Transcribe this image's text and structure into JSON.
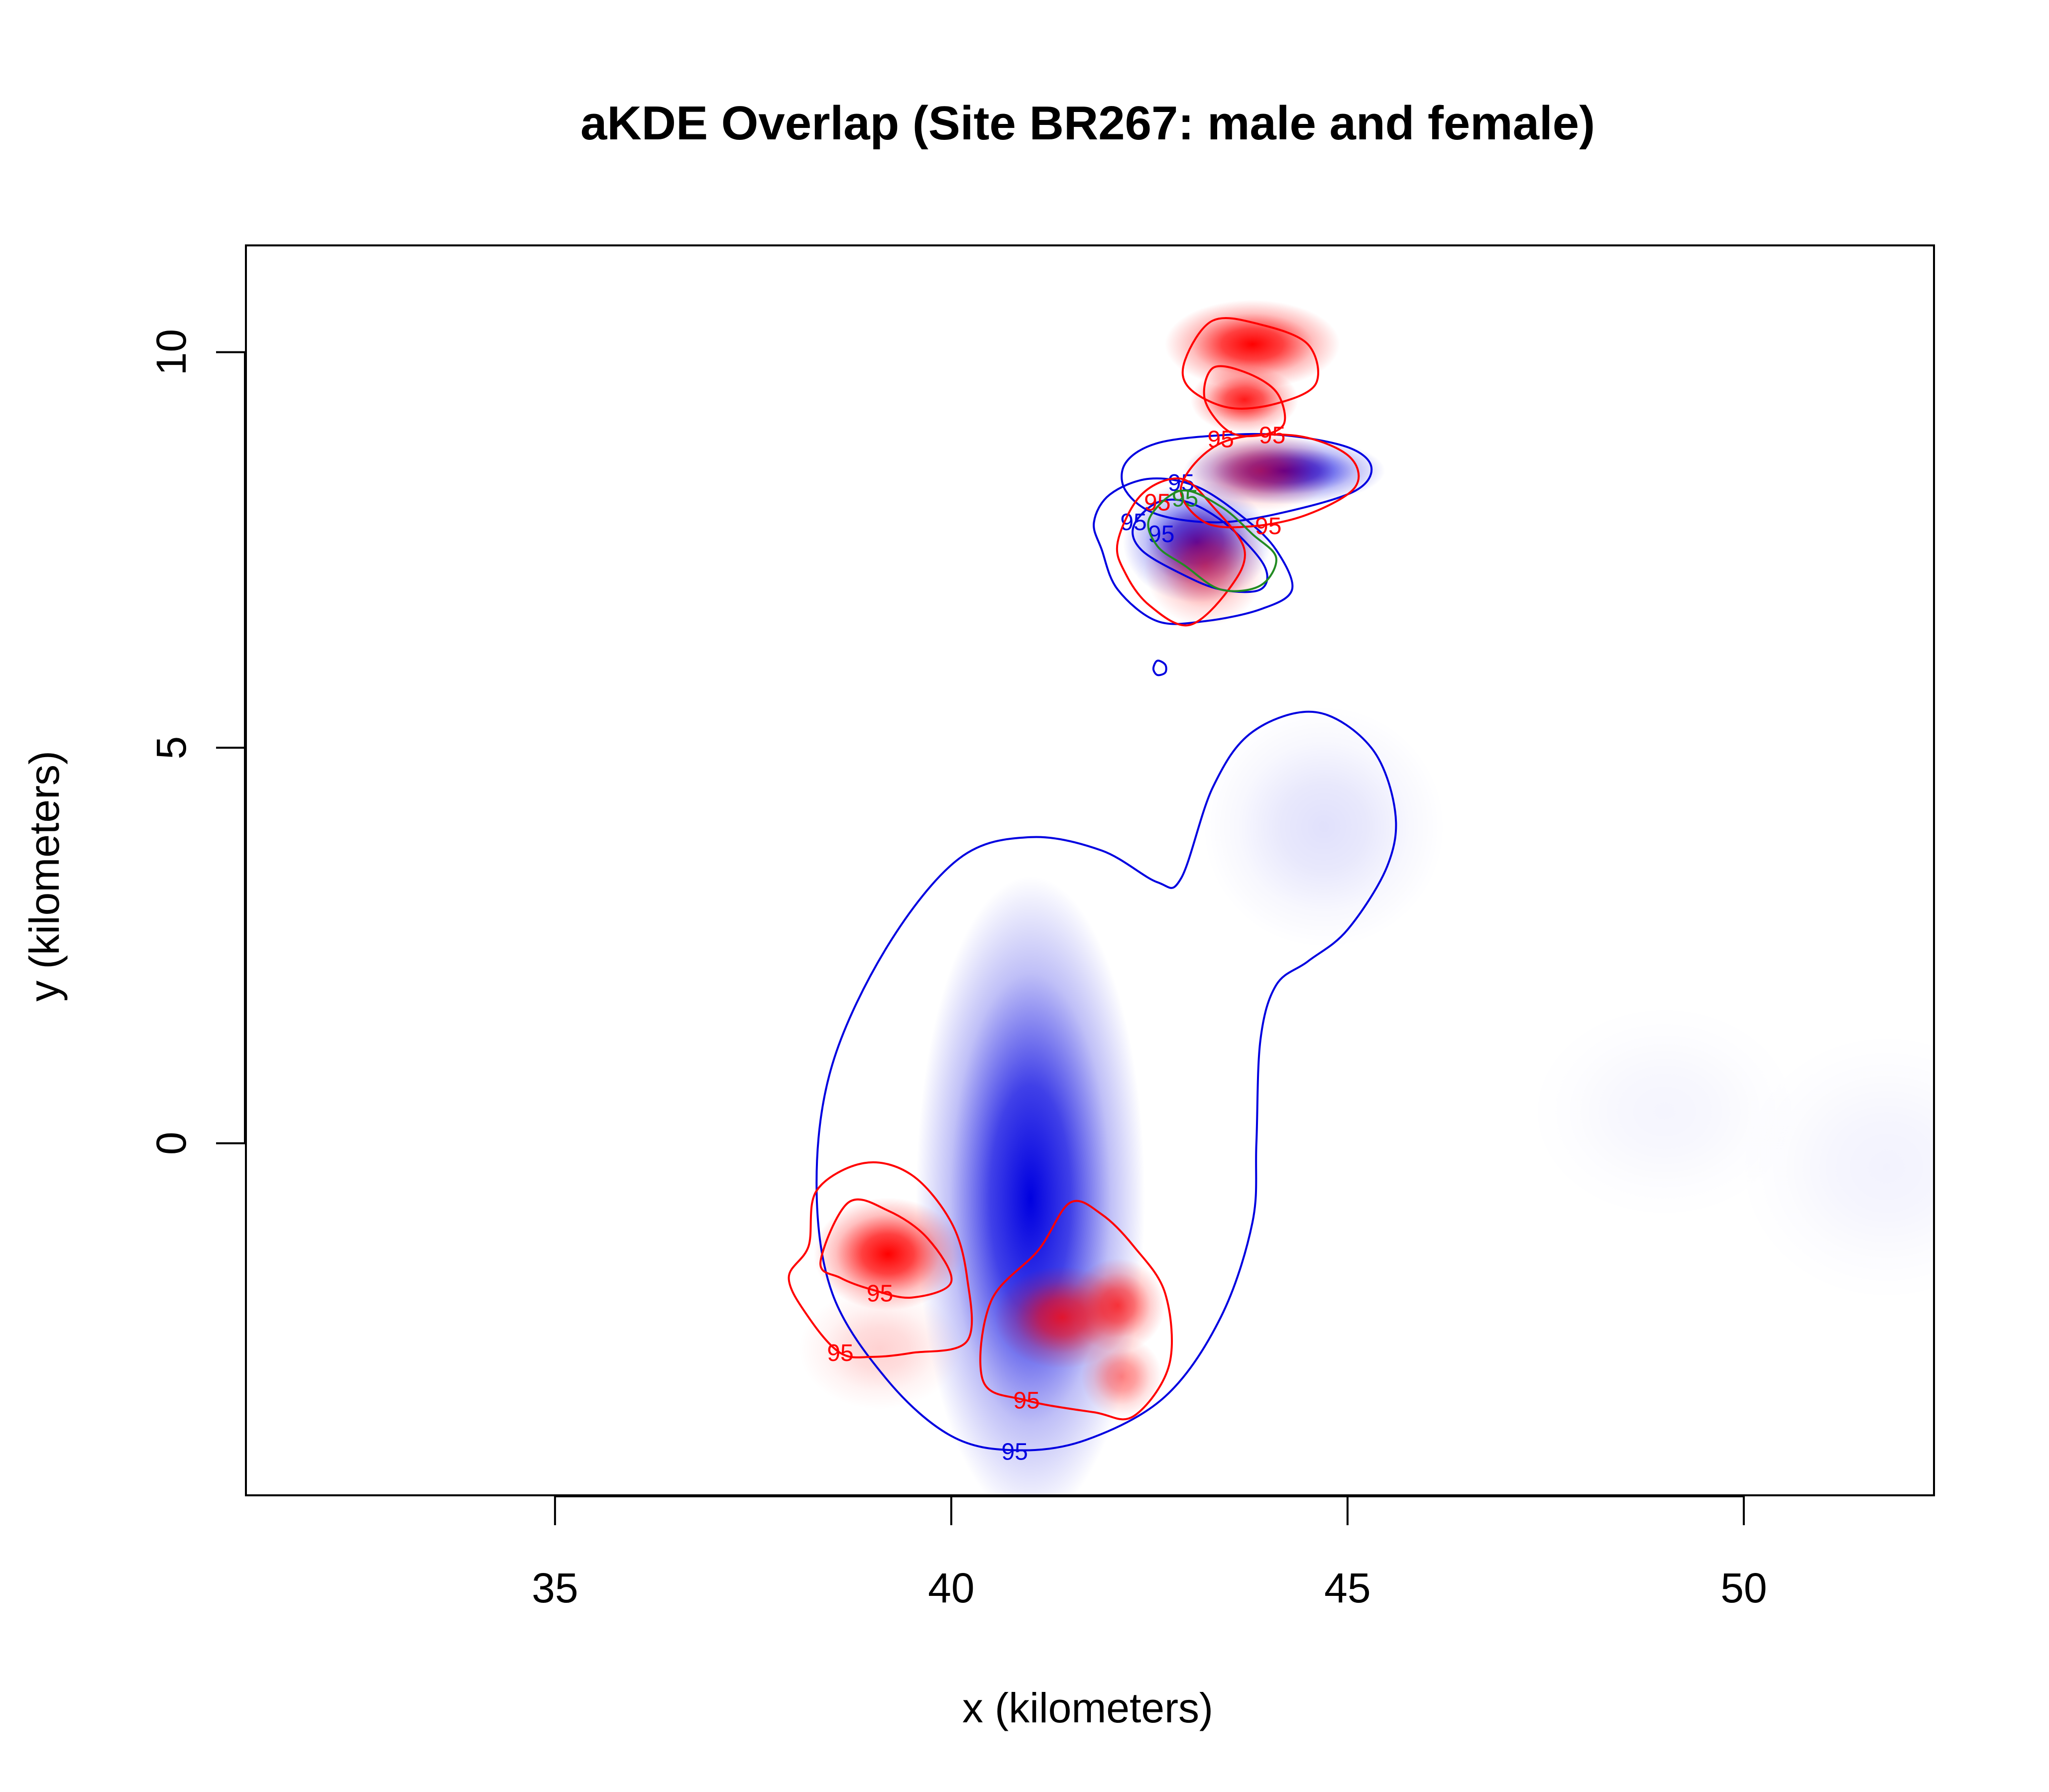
{
  "chart_data": {
    "type": "heatmap",
    "title": "aKDE Overlap (Site BR267: male and female)",
    "xlabel": "x (kilometers)",
    "ylabel": "y (kilometers)",
    "xlim": [
      31.1,
      52.4
    ],
    "ylim": [
      -4.45,
      11.35
    ],
    "xticks": [
      "35",
      "40",
      "45",
      "50"
    ],
    "yticks": [
      "0",
      "5",
      "10"
    ],
    "grid": false,
    "legend": "none",
    "colors": {
      "male": "#0000e0",
      "female": "#ff0000",
      "overlap": "#228b22",
      "frame": "#000000"
    },
    "density_blobs": [
      {
        "group": "male",
        "x": 41.0,
        "y": -0.7,
        "sx": 0.85,
        "sy": 2.4,
        "strength": 1.0
      },
      {
        "group": "male",
        "x": 44.7,
        "y": 4.0,
        "sx": 0.9,
        "sy": 0.9,
        "strength": 0.12
      },
      {
        "group": "male",
        "x": 49.0,
        "y": 0.4,
        "sx": 1.0,
        "sy": 0.8,
        "strength": 0.04
      },
      {
        "group": "male",
        "x": 51.8,
        "y": -0.3,
        "sx": 1.1,
        "sy": 1.0,
        "strength": 0.05
      },
      {
        "group": "male",
        "x": 44.2,
        "y": 8.5,
        "sx": 0.75,
        "sy": 0.25,
        "strength": 1.0
      },
      {
        "group": "male",
        "x": 43.1,
        "y": 7.6,
        "sx": 0.55,
        "sy": 0.45,
        "strength": 0.95
      },
      {
        "group": "female",
        "x": 39.2,
        "y": -1.4,
        "sx": 0.55,
        "sy": 0.42,
        "strength": 1.0
      },
      {
        "group": "female",
        "x": 39.1,
        "y": -2.6,
        "sx": 0.6,
        "sy": 0.45,
        "strength": 0.18
      },
      {
        "group": "female",
        "x": 41.4,
        "y": -2.2,
        "sx": 0.5,
        "sy": 0.38,
        "strength": 0.8
      },
      {
        "group": "female",
        "x": 42.1,
        "y": -2.05,
        "sx": 0.35,
        "sy": 0.35,
        "strength": 0.75
      },
      {
        "group": "female",
        "x": 42.15,
        "y": -2.95,
        "sx": 0.3,
        "sy": 0.3,
        "strength": 0.5
      },
      {
        "group": "female",
        "x": 43.8,
        "y": 10.1,
        "sx": 0.65,
        "sy": 0.33,
        "strength": 1.0
      },
      {
        "group": "female",
        "x": 43.7,
        "y": 9.4,
        "sx": 0.4,
        "sy": 0.25,
        "strength": 0.9
      },
      {
        "group": "female",
        "x": 43.2,
        "y": 7.3,
        "sx": 0.45,
        "sy": 0.45,
        "strength": 0.55
      },
      {
        "group": "female",
        "x": 43.9,
        "y": 8.5,
        "sx": 0.55,
        "sy": 0.3,
        "strength": 0.55
      }
    ],
    "contours": [
      {
        "group": "male",
        "level": "95",
        "label_at": [
          40.8,
          -3.9
        ],
        "points": [
          [
            40.8,
            -3.88
          ],
          [
            40.0,
            -3.7
          ],
          [
            39.2,
            -3.0
          ],
          [
            38.5,
            -1.9
          ],
          [
            38.3,
            -0.5
          ],
          [
            38.5,
            1.0
          ],
          [
            39.2,
            2.5
          ],
          [
            40.1,
            3.6
          ],
          [
            41.0,
            3.87
          ],
          [
            41.9,
            3.7
          ],
          [
            42.6,
            3.3
          ],
          [
            42.9,
            3.35
          ],
          [
            43.3,
            4.5
          ],
          [
            43.8,
            5.2
          ],
          [
            44.6,
            5.45
          ],
          [
            45.3,
            5.0
          ],
          [
            45.6,
            4.2
          ],
          [
            45.5,
            3.5
          ],
          [
            45.0,
            2.7
          ],
          [
            44.5,
            2.3
          ],
          [
            44.1,
            2.0
          ],
          [
            43.9,
            1.3
          ],
          [
            43.85,
            0.0
          ],
          [
            43.8,
            -1.0
          ],
          [
            43.4,
            -2.2
          ],
          [
            42.7,
            -3.2
          ],
          [
            41.7,
            -3.75
          ]
        ]
      },
      {
        "group": "male",
        "level": "95",
        "label_at": [
          42.9,
          8.35
        ],
        "points": [
          [
            42.2,
            8.6
          ],
          [
            42.6,
            8.85
          ],
          [
            43.4,
            8.95
          ],
          [
            44.2,
            8.95
          ],
          [
            45.0,
            8.8
          ],
          [
            45.3,
            8.55
          ],
          [
            45.1,
            8.25
          ],
          [
            44.3,
            8.0
          ],
          [
            43.4,
            7.85
          ],
          [
            42.6,
            7.95
          ],
          [
            42.2,
            8.25
          ]
        ]
      },
      {
        "group": "male",
        "level": "95",
        "label_at": [
          42.3,
          7.85
        ],
        "points": [
          [
            41.8,
            7.85
          ],
          [
            42.0,
            8.2
          ],
          [
            42.5,
            8.4
          ],
          [
            43.1,
            8.3
          ],
          [
            43.7,
            7.9
          ],
          [
            44.1,
            7.5
          ],
          [
            44.3,
            7.0
          ],
          [
            43.9,
            6.75
          ],
          [
            43.2,
            6.6
          ],
          [
            42.6,
            6.6
          ],
          [
            42.1,
            7.0
          ],
          [
            41.9,
            7.5
          ]
        ]
      },
      {
        "group": "male",
        "level": "95",
        "label_at": [
          42.65,
          7.7
        ],
        "points": [
          [
            42.3,
            7.8
          ],
          [
            42.6,
            8.1
          ],
          [
            43.0,
            8.1
          ],
          [
            43.5,
            7.8
          ],
          [
            43.95,
            7.3
          ],
          [
            43.9,
            7.0
          ],
          [
            43.4,
            7.0
          ],
          [
            42.9,
            7.2
          ],
          [
            42.4,
            7.5
          ]
        ]
      },
      {
        "group": "male",
        "level": "",
        "label_at": [
          42.6,
          6.0
        ],
        "points": [
          [
            42.55,
            6.0
          ],
          [
            42.6,
            6.1
          ],
          [
            42.7,
            6.05
          ],
          [
            42.7,
            5.95
          ],
          [
            42.6,
            5.92
          ]
        ]
      },
      {
        "group": "female",
        "level": "95",
        "label_at": [
          38.6,
          -2.65
        ],
        "points": [
          [
            38.6,
            -2.65
          ],
          [
            38.2,
            -2.2
          ],
          [
            37.95,
            -1.7
          ],
          [
            38.2,
            -1.3
          ],
          [
            38.3,
            -0.6
          ],
          [
            38.9,
            -0.25
          ],
          [
            39.5,
            -0.4
          ],
          [
            40.0,
            -1.0
          ],
          [
            40.2,
            -1.7
          ],
          [
            40.2,
            -2.5
          ],
          [
            39.5,
            -2.65
          ],
          [
            39.0,
            -2.7
          ]
        ]
      },
      {
        "group": "female",
        "level": "95",
        "label_at": [
          39.1,
          -1.9
        ],
        "points": [
          [
            38.35,
            -1.5
          ],
          [
            38.7,
            -0.75
          ],
          [
            39.2,
            -0.85
          ],
          [
            39.7,
            -1.2
          ],
          [
            40.0,
            -1.75
          ],
          [
            39.5,
            -1.95
          ],
          [
            39.0,
            -1.85
          ],
          [
            38.6,
            -1.7
          ]
        ]
      },
      {
        "group": "female",
        "level": "95",
        "label_at": [
          40.95,
          -3.25
        ],
        "points": [
          [
            40.95,
            -3.25
          ],
          [
            40.4,
            -3.0
          ],
          [
            40.5,
            -2.0
          ],
          [
            41.1,
            -1.35
          ],
          [
            41.5,
            -0.75
          ],
          [
            41.9,
            -0.9
          ],
          [
            42.3,
            -1.3
          ],
          [
            42.7,
            -1.9
          ],
          [
            42.75,
            -2.8
          ],
          [
            42.3,
            -3.45
          ],
          [
            41.8,
            -3.4
          ]
        ]
      },
      {
        "group": "female",
        "level": "95",
        "label_at": [
          43.4,
          8.9
        ],
        "points": [
          [
            42.95,
            9.9
          ],
          [
            43.3,
            10.4
          ],
          [
            43.9,
            10.35
          ],
          [
            44.5,
            10.1
          ],
          [
            44.6,
            9.6
          ],
          [
            44.1,
            9.35
          ],
          [
            43.5,
            9.3
          ],
          [
            43.0,
            9.55
          ]
        ]
      },
      {
        "group": "female",
        "level": "95",
        "label_at": [
          44.05,
          8.95
        ],
        "points": [
          [
            43.2,
            9.4
          ],
          [
            43.3,
            9.8
          ],
          [
            43.7,
            9.75
          ],
          [
            44.1,
            9.5
          ],
          [
            44.2,
            9.1
          ],
          [
            43.9,
            8.95
          ],
          [
            43.5,
            9.0
          ]
        ]
      },
      {
        "group": "female",
        "level": "95",
        "label_at": [
          44.0,
          7.8
        ],
        "points": [
          [
            42.9,
            8.3
          ],
          [
            43.4,
            8.85
          ],
          [
            44.3,
            8.95
          ],
          [
            45.0,
            8.7
          ],
          [
            45.1,
            8.3
          ],
          [
            44.5,
            7.95
          ],
          [
            43.8,
            7.8
          ],
          [
            43.2,
            7.85
          ]
        ]
      },
      {
        "group": "female",
        "level": "95",
        "label_at": [
          42.6,
          8.1
        ],
        "points": [
          [
            42.1,
            7.6
          ],
          [
            42.4,
            8.2
          ],
          [
            42.9,
            8.4
          ],
          [
            43.3,
            8.05
          ],
          [
            43.7,
            7.5
          ],
          [
            43.5,
            7.0
          ],
          [
            43.0,
            6.55
          ],
          [
            42.5,
            6.8
          ],
          [
            42.2,
            7.2
          ]
        ]
      },
      {
        "group": "overlap",
        "level": "95",
        "label_at": [
          42.95,
          8.15
        ],
        "points": [
          [
            42.5,
            7.9
          ],
          [
            42.9,
            8.25
          ],
          [
            43.4,
            8.05
          ],
          [
            43.8,
            7.7
          ],
          [
            44.1,
            7.4
          ],
          [
            43.9,
            7.05
          ],
          [
            43.4,
            7.0
          ],
          [
            42.95,
            7.3
          ],
          [
            42.6,
            7.55
          ]
        ]
      }
    ]
  }
}
